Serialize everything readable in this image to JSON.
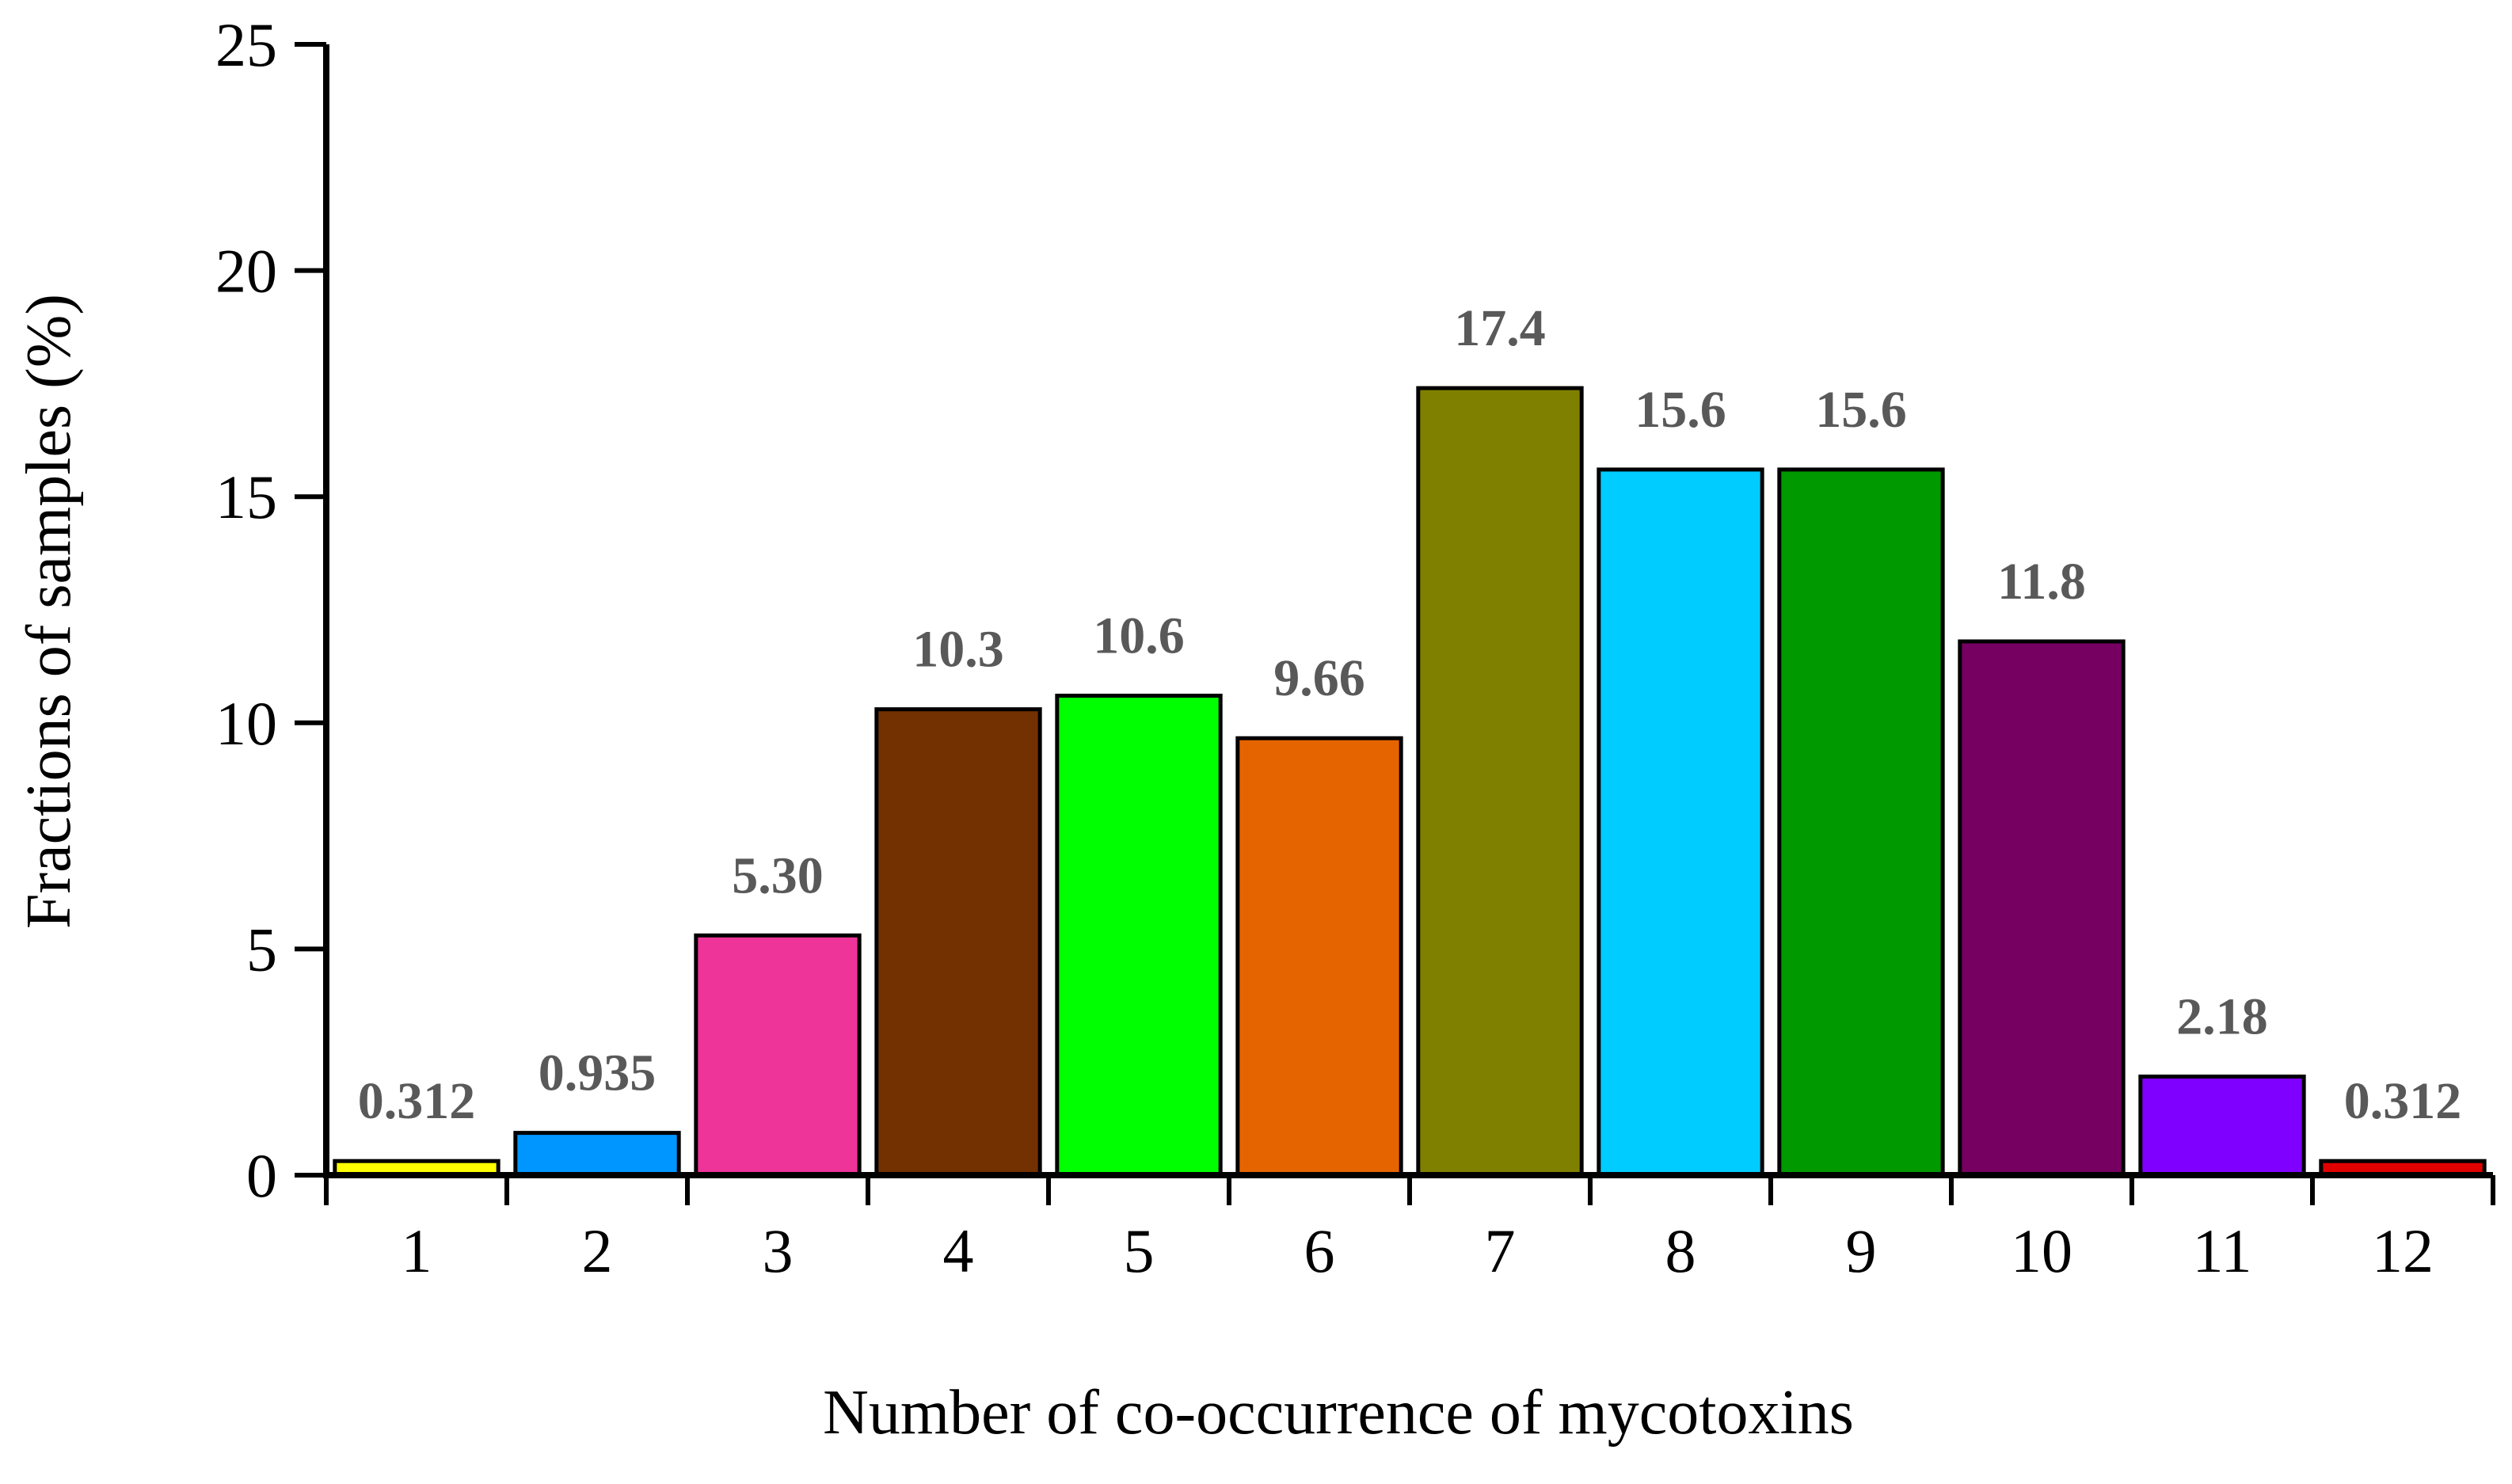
{
  "chart_data": {
    "type": "bar",
    "title": "",
    "xlabel": "Number of co-occurrence of mycotoxins",
    "ylabel": "Fractions of samples (%)",
    "ylim": [
      0,
      25
    ],
    "yticks": [
      0,
      5,
      10,
      15,
      20,
      25
    ],
    "grid": false,
    "categories": [
      "1",
      "2",
      "3",
      "4",
      "5",
      "6",
      "7",
      "8",
      "9",
      "10",
      "11",
      "12"
    ],
    "values": [
      0.312,
      0.935,
      5.3,
      10.3,
      10.6,
      9.66,
      17.4,
      15.6,
      15.6,
      11.8,
      2.18,
      0.312
    ],
    "data_labels": [
      "0.312",
      "0.935",
      "5.30",
      "10.3",
      "10.6",
      "9.66",
      "17.4",
      "15.6",
      "15.6",
      "11.8",
      "2.18",
      "0.312"
    ],
    "colors": [
      "#FFFF00",
      "#0096FF",
      "#EE3399",
      "#733000",
      "#00FF00",
      "#E66400",
      "#808000",
      "#00CCFF",
      "#009900",
      "#760062",
      "#8000FF",
      "#E00000"
    ],
    "axis_color": "#000000",
    "label_color": "#595959"
  }
}
